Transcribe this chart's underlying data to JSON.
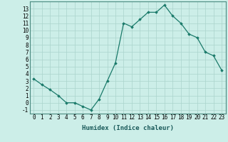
{
  "x": [
    0,
    1,
    2,
    3,
    4,
    5,
    6,
    7,
    8,
    9,
    10,
    11,
    12,
    13,
    14,
    15,
    16,
    17,
    18,
    19,
    20,
    21,
    22,
    23
  ],
  "y": [
    3.3,
    2.5,
    1.8,
    1.0,
    0.0,
    -0.0,
    -0.5,
    -1.0,
    0.5,
    3.0,
    5.5,
    11.0,
    10.5,
    11.5,
    12.5,
    12.5,
    13.5,
    12.0,
    11.0,
    9.5,
    9.0,
    7.0,
    6.5,
    4.5
  ],
  "line_color": "#1a7a6a",
  "marker": "D",
  "marker_size": 1.8,
  "linewidth": 0.9,
  "xlim": [
    -0.5,
    23.5
  ],
  "ylim": [
    -1.5,
    14.0
  ],
  "yticks": [
    -1,
    0,
    1,
    2,
    3,
    4,
    5,
    6,
    7,
    8,
    9,
    10,
    11,
    12,
    13
  ],
  "xticks": [
    0,
    1,
    2,
    3,
    4,
    5,
    6,
    7,
    8,
    9,
    10,
    11,
    12,
    13,
    14,
    15,
    16,
    17,
    18,
    19,
    20,
    21,
    22,
    23
  ],
  "xlabel": "Humidex (Indice chaleur)",
  "bg_color": "#cceee8",
  "grid_color": "#aad4cc",
  "xlabel_fontsize": 6.5,
  "tick_fontsize": 5.5
}
